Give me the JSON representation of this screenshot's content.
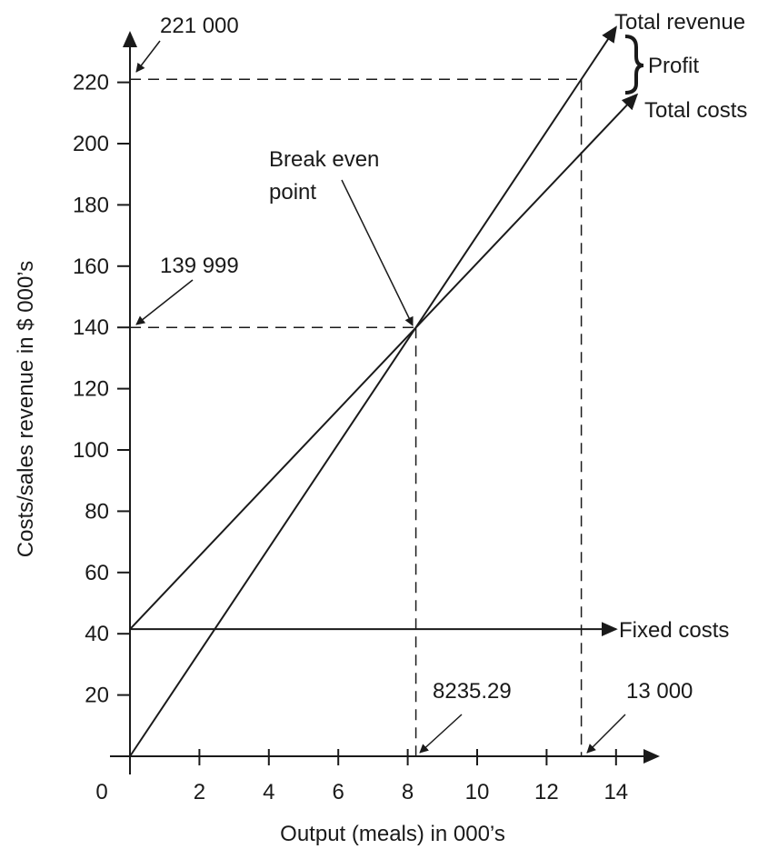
{
  "chart_data": {
    "type": "line",
    "xlabel": "Output (meals) in 000’s",
    "ylabel": "Costs/sales revenue in $ 000’s",
    "xlim": [
      0,
      15
    ],
    "ylim": [
      0,
      235
    ],
    "grid": false,
    "origin_label": "0",
    "x_ticks": [
      2,
      4,
      6,
      8,
      10,
      12,
      14
    ],
    "x_tick_labels": [
      "2",
      "4",
      "6",
      "8",
      "10",
      "12",
      "14"
    ],
    "y_ticks": [
      20,
      40,
      60,
      80,
      100,
      120,
      140,
      160,
      180,
      200,
      220
    ],
    "y_tick_labels": [
      "20",
      "40",
      "60",
      "80",
      "100",
      "120",
      "140",
      "160",
      "180",
      "200",
      "220"
    ],
    "series": [
      {
        "name": "Total revenue",
        "x": [
          0,
          14
        ],
        "y": [
          0,
          238
        ]
      },
      {
        "name": "Total costs",
        "x": [
          0,
          14.6
        ],
        "y": [
          41.5,
          216
        ]
      },
      {
        "name": "Fixed costs",
        "x": [
          0,
          14
        ],
        "y": [
          41.5,
          41.5
        ]
      }
    ],
    "break_even": {
      "label": "Break even point",
      "x": 8.23529,
      "y": 139.999
    },
    "annotations": {
      "y_value_high": "221 000",
      "y_value_break_even": "139 999",
      "x_value_break_even": "8235.29",
      "x_value_high": "13 000",
      "profit": "Profit",
      "high_point": {
        "x": 13,
        "y": 221
      }
    },
    "colors": {
      "ink": "#1a1a1a",
      "background": "#ffffff"
    }
  }
}
